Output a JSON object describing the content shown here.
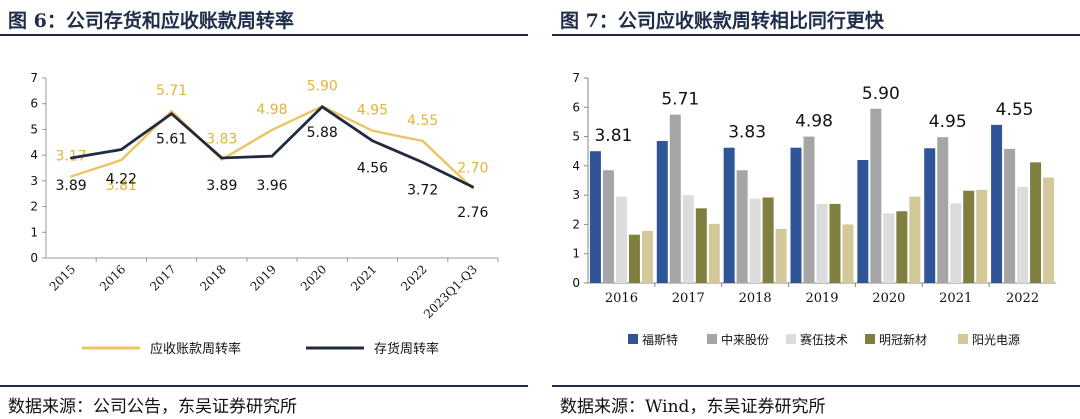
{
  "charts": [
    {
      "title": "图 6：公司存货和应收账款周转率",
      "source": "数据来源：公司公告，东吴证券研究所"
    },
    {
      "title": "图 7：公司应收账款周转相比同行更快",
      "source": "数据来源：Wind，东吴证券研究所"
    }
  ],
  "chart_data": [
    {
      "type": "line",
      "title": "图 6：公司存货和应收账款周转率",
      "categories": [
        "2015",
        "2016",
        "2017",
        "2018",
        "2019",
        "2020",
        "2021",
        "2022",
        "2023Q1-Q3"
      ],
      "ylim": [
        0,
        7
      ],
      "yticks": [
        "0",
        "1",
        "2",
        "3",
        "4",
        "5",
        "6",
        "7"
      ],
      "grid": false,
      "legend_position": "bottom",
      "series": [
        {
          "name": "应收账款周转率",
          "color": "#eec462",
          "values": [
            3.17,
            3.81,
            5.71,
            3.83,
            4.98,
            5.9,
            4.95,
            4.55,
            2.7
          ],
          "labels": [
            "3.17",
            "3.81",
            "5.71",
            "3.83",
            "4.98",
            "5.90",
            "4.95",
            "4.55",
            "2.70"
          ]
        },
        {
          "name": "存货周转率",
          "color": "#222b3d",
          "values": [
            3.89,
            4.22,
            5.61,
            3.89,
            3.96,
            5.88,
            4.56,
            3.72,
            2.76
          ],
          "labels": [
            "3.89",
            "4.22",
            "5.61",
            "3.89",
            "3.96",
            "5.88",
            "4.56",
            "3.72",
            "2.76"
          ]
        }
      ],
      "source": "数据来源：公司公告，东吴证券研究所"
    },
    {
      "type": "bar",
      "title": "图 7：公司应收账款周转相比同行更快",
      "categories": [
        "2016",
        "2017",
        "2018",
        "2019",
        "2020",
        "2021",
        "2022"
      ],
      "ylim": [
        0,
        7
      ],
      "yticks": [
        "0",
        "1",
        "2",
        "3",
        "4",
        "5",
        "6",
        "7"
      ],
      "grid": false,
      "legend_position": "bottom",
      "annotations": [
        "3.81",
        "5.71",
        "3.83",
        "4.98",
        "5.90",
        "4.95",
        "4.55"
      ],
      "series": [
        {
          "name": "福斯特",
          "color": "#2f5597",
          "values": [
            4.5,
            4.85,
            4.62,
            4.62,
            4.2,
            4.6,
            5.4
          ]
        },
        {
          "name": "中来股份",
          "color": "#a5a5a5",
          "values": [
            3.85,
            5.75,
            3.85,
            5.0,
            5.95,
            4.98,
            4.58
          ]
        },
        {
          "name": "赛伍技术",
          "color": "#dcdcdc",
          "values": [
            2.95,
            3.0,
            2.88,
            2.7,
            2.38,
            2.72,
            3.28
          ]
        },
        {
          "name": "明冠新材",
          "color": "#7f7f3f",
          "values": [
            1.65,
            2.55,
            2.92,
            2.7,
            2.45,
            3.15,
            4.12
          ]
        },
        {
          "name": "阳光电源",
          "color": "#d3c89a",
          "values": [
            1.78,
            2.02,
            1.85,
            2.0,
            2.95,
            3.18,
            3.6
          ]
        }
      ],
      "source": "数据来源：Wind，东吴证券研究所"
    }
  ]
}
